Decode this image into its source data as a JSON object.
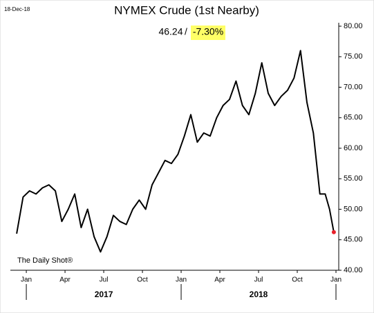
{
  "chart_data": {
    "type": "line",
    "title": "NYMEX Crude (1st Nearby)",
    "date": "18-Dec-18",
    "last_value": "46.24",
    "separator": "/",
    "change": "-7.30%",
    "source": "The Daily Shot®",
    "x": [
      "2016-12",
      "2016-12",
      "2017-01",
      "2017-01",
      "2017-02",
      "2017-02",
      "2017-03",
      "2017-03",
      "2017-04",
      "2017-04",
      "2017-05",
      "2017-05",
      "2017-06",
      "2017-06",
      "2017-07",
      "2017-07",
      "2017-08",
      "2017-08",
      "2017-09",
      "2017-09",
      "2017-10",
      "2017-10",
      "2017-11",
      "2017-11",
      "2017-12",
      "2017-12",
      "2018-01",
      "2018-01",
      "2018-02",
      "2018-02",
      "2018-03",
      "2018-03",
      "2018-04",
      "2018-04",
      "2018-05",
      "2018-05",
      "2018-06",
      "2018-06",
      "2018-07",
      "2018-07",
      "2018-08",
      "2018-08",
      "2018-09",
      "2018-09",
      "2018-10",
      "2018-10",
      "2018-11",
      "2018-11",
      "2018-12",
      "2018-12",
      "2018-12"
    ],
    "series": [
      {
        "name": "NYMEX Crude",
        "color": "#000000",
        "values": [
          46,
          52,
          53,
          52.5,
          53.5,
          54,
          53,
          48,
          50,
          52.5,
          47,
          50,
          45.5,
          43,
          45.5,
          49,
          48,
          47.5,
          50,
          51.5,
          50,
          54,
          56,
          58,
          57.5,
          59,
          62,
          65.5,
          61,
          62.5,
          62,
          65,
          67,
          68,
          71,
          67,
          65.5,
          69,
          74,
          69,
          67,
          68.5,
          69.5,
          71.5,
          76,
          67.5,
          62.5,
          52.5,
          52.5,
          50,
          46.24
        ]
      }
    ],
    "xlim": [
      "2016-12",
      "2019-01"
    ],
    "xticks": [
      {
        "value": "2017-01",
        "label": "Jan"
      },
      {
        "value": "2017-04",
        "label": "Apr"
      },
      {
        "value": "2017-07",
        "label": "Jul"
      },
      {
        "value": "2017-10",
        "label": "Oct"
      },
      {
        "value": "2018-01",
        "label": "Jan"
      },
      {
        "value": "2018-04",
        "label": "Apr"
      },
      {
        "value": "2018-07",
        "label": "Jul"
      },
      {
        "value": "2018-10",
        "label": "Oct"
      },
      {
        "value": "2019-01",
        "label": "Jan"
      }
    ],
    "years": [
      "2017",
      "2018"
    ],
    "ylim": [
      40,
      80
    ],
    "yticks": [
      {
        "value": 40,
        "label": "40.00"
      },
      {
        "value": 45,
        "label": "45.00"
      },
      {
        "value": 50,
        "label": "50.00"
      },
      {
        "value": 55,
        "label": "55.00"
      },
      {
        "value": 60,
        "label": "60.00"
      },
      {
        "value": 65,
        "label": "65.00"
      },
      {
        "value": 70,
        "label": "70.00"
      },
      {
        "value": 75,
        "label": "75.00"
      },
      {
        "value": 80,
        "label": "80.00"
      }
    ],
    "last_point_color": "#e8202a"
  }
}
